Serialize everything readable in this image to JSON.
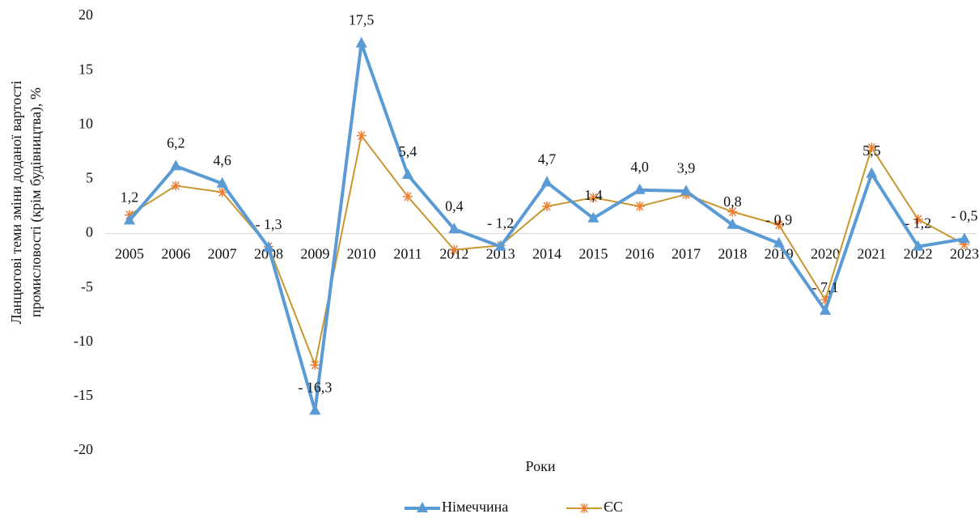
{
  "chart_data": {
    "type": "line",
    "ylabel": [
      "Ланцюгові теми зміни доданої вартості",
      "промисловості (крім будівництва), %"
    ],
    "xlabel": "Роки",
    "categories": [
      "2005",
      "2006",
      "2007",
      "2008",
      "2009",
      "2010",
      "2011",
      "2012",
      "2013",
      "2014",
      "2015",
      "2016",
      "2017",
      "2018",
      "2019",
      "2020",
      "2021",
      "2022",
      "2023"
    ],
    "series": [
      {
        "name": "Німеччина",
        "color": "#5b9bd5",
        "marker": "triangle",
        "values": [
          1.2,
          6.2,
          4.6,
          -1.3,
          -16.3,
          17.5,
          5.4,
          0.4,
          -1.2,
          4.7,
          1.4,
          4.0,
          3.9,
          0.8,
          -0.9,
          -7.1,
          5.5,
          -1.2,
          -0.5
        ],
        "value_labels": [
          "1,2",
          "6,2",
          "4,6",
          "- 1,3",
          "- 16,3",
          "17,5",
          "5,4",
          "0,4",
          "- 1,2",
          "4,7",
          "1,4",
          "4,0",
          "3,9",
          "0,8",
          "- 0,9",
          "- 7,1",
          "5,5",
          "- 1,2",
          "- 0,5"
        ]
      },
      {
        "name": "ЄС",
        "color": "#c8962e",
        "marker": "asterisk",
        "values": [
          1.7,
          4.4,
          3.8,
          -1.2,
          -12.1,
          9.0,
          3.4,
          -1.5,
          -1.1,
          2.5,
          3.3,
          2.5,
          3.6,
          2.0,
          0.8,
          -6.1,
          7.9,
          1.3,
          -1.0
        ]
      }
    ],
    "ylim": [
      -20,
      20
    ],
    "yticks": [
      -20,
      -15,
      -10,
      -5,
      0,
      5,
      10,
      15,
      20
    ],
    "legend": "bottom"
  }
}
